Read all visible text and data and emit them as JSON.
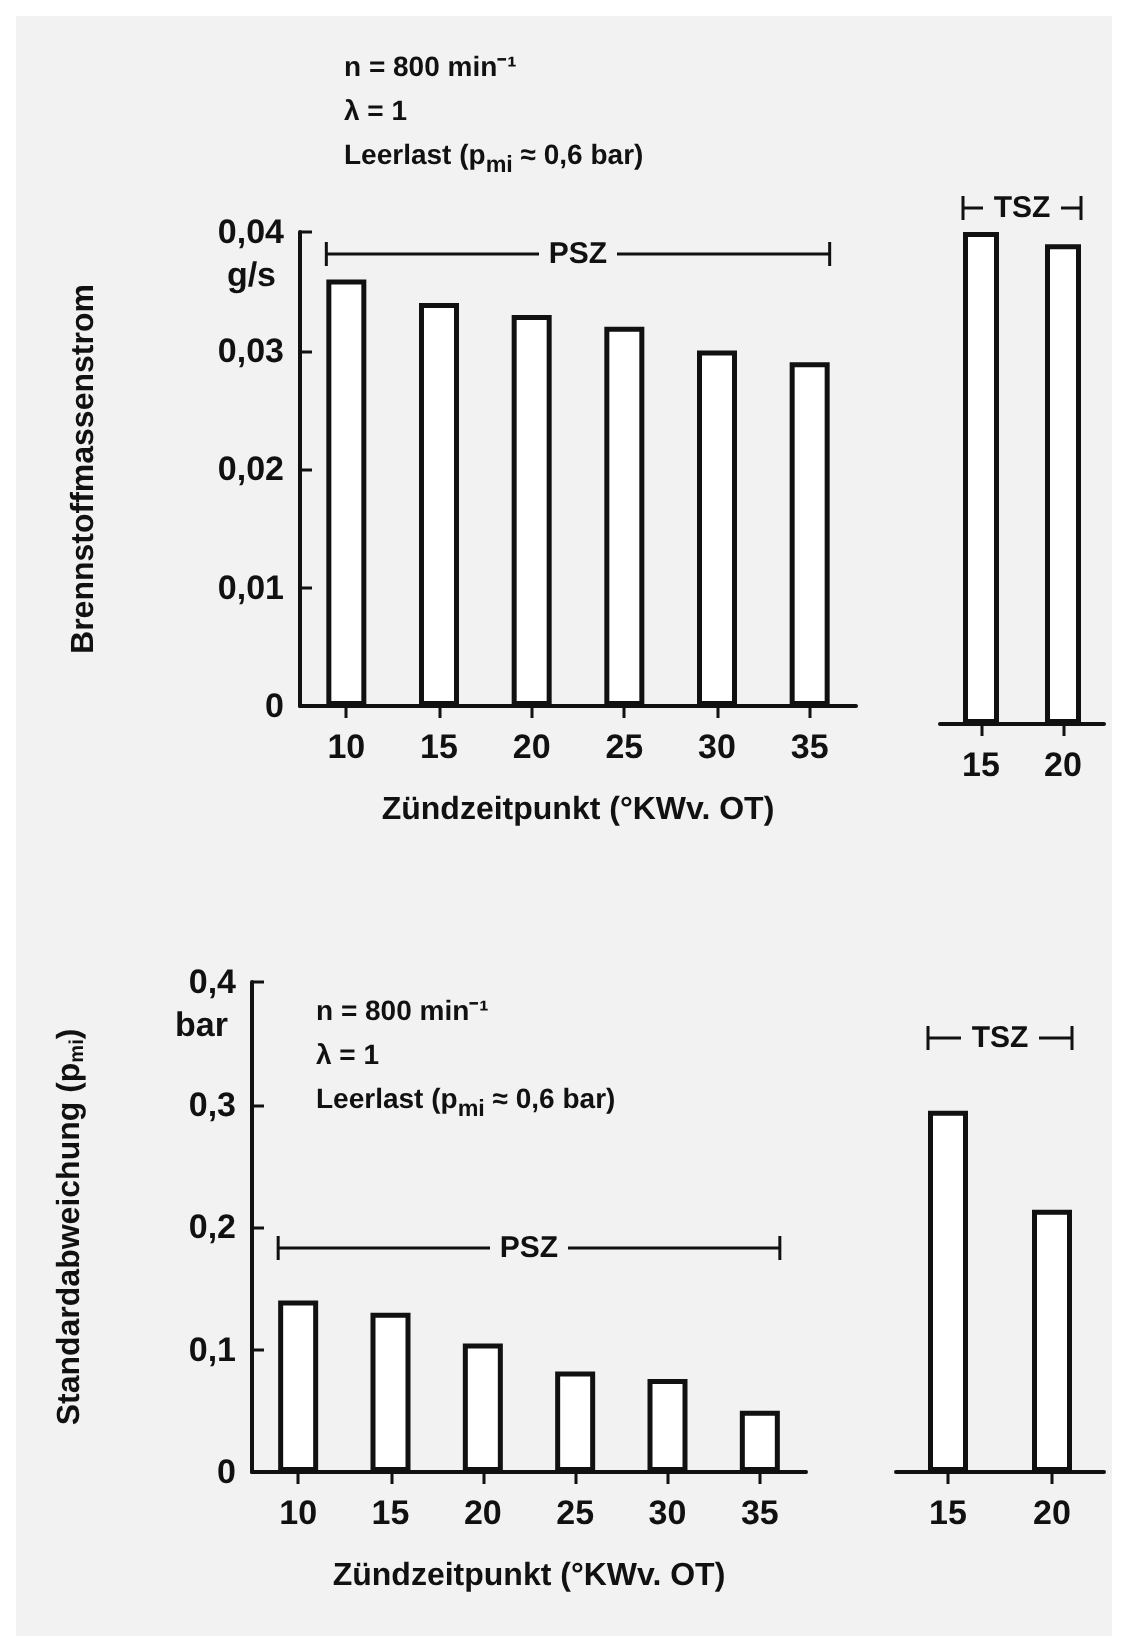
{
  "chart_data": [
    {
      "type": "bar",
      "ylabel": "Brennstoffmassenstrom",
      "xlabel": "Zündzeitpunkt (°KWv. OT)",
      "categories": [
        "10",
        "15",
        "20",
        "25",
        "30",
        "35"
      ],
      "values": [
        0.036,
        0.034,
        0.033,
        0.032,
        0.03,
        0.029
      ],
      "color": "#ffffff",
      "ylim": [
        0,
        0.04
      ],
      "yticks": [
        0,
        {
          "value": 0.01,
          "label": "0,01"
        },
        {
          "value": 0.02,
          "label": "0,02"
        },
        {
          "value": 0.03,
          "label": "0,03"
        },
        {
          "value": 0.04,
          "label": "0,04"
        }
      ],
      "annotations": [
        "n = 800 min⁻¹",
        "λ = 1",
        "Leerlast (p$_{mi}$ ≈ 0,6 bar)",
        "g/s",
        "PSZ"
      ]
    },
    {
      "type": "bar",
      "categories": [
        "15",
        "20"
      ],
      "values": [
        0.04,
        0.039
      ],
      "color": "#ffffff",
      "ylim": [
        0,
        0.04
      ],
      "tick_labels": "x",
      "annotations": [
        "TSZ"
      ]
    },
    {
      "type": "bar",
      "ylabel": "Standardabweichung (p$_{mi}$)",
      "xlabel": "Zündzeitpunkt (°KWv. OT)",
      "categories": [
        "10",
        "15",
        "20",
        "25",
        "30",
        "35"
      ],
      "values": [
        0.14,
        0.13,
        0.105,
        0.082,
        0.076,
        0.05
      ],
      "color": "#ffffff",
      "ylim": [
        0,
        0.4
      ],
      "yticks": [
        0,
        {
          "value": 0.1,
          "label": "0,1"
        },
        {
          "value": 0.2,
          "label": "0,2"
        },
        {
          "value": 0.3,
          "label": "0,3"
        },
        {
          "value": 0.4,
          "label": "0,4"
        }
      ],
      "annotations": [
        "n = 800 min⁻¹",
        "λ = 1",
        "Leerlast (p$_{mi}$ ≈ 0,6 bar)",
        "bar",
        "PSZ"
      ]
    },
    {
      "type": "bar",
      "categories": [
        "15",
        "20"
      ],
      "values": [
        0.295,
        0.214
      ],
      "color": "#ffffff",
      "ylim": [
        0,
        0.4
      ],
      "tick_labels": "x",
      "annotations": [
        "TSZ"
      ]
    }
  ]
}
